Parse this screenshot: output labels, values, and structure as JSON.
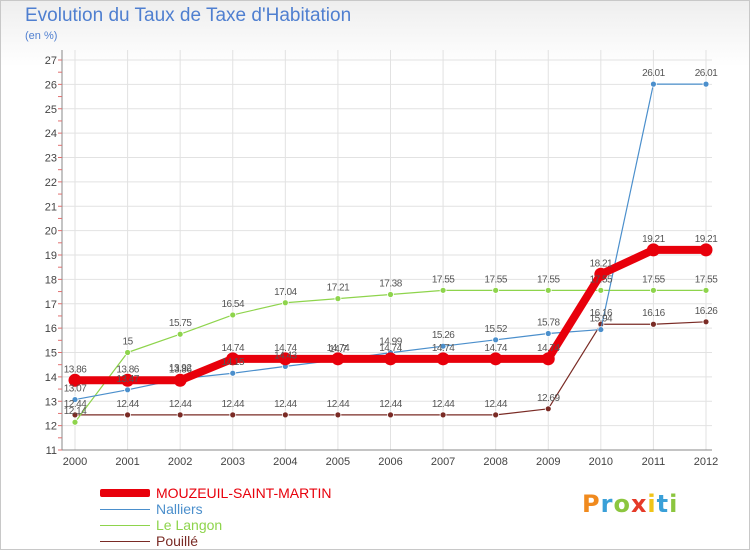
{
  "header": {
    "title": "Evolution du Taux de Taxe d'Habitation",
    "subtitle": "(en %)"
  },
  "brand": {
    "logo_text": "Proxiti",
    "letter_colors": [
      "#f08a1e",
      "#3aa0d8",
      "#8cc63f",
      "#e53a28",
      "#f0c419",
      "#3aa0d8",
      "#8cc63f"
    ]
  },
  "chart_data": {
    "type": "line",
    "x": [
      "2000",
      "2001",
      "2002",
      "2003",
      "2004",
      "2005",
      "2006",
      "2007",
      "2008",
      "2009",
      "2010",
      "2011",
      "2012"
    ],
    "ylim": [
      11,
      27
    ],
    "yticks": [
      "11",
      "12",
      "13",
      "14",
      "15",
      "16",
      "17",
      "18",
      "19",
      "20",
      "21",
      "22",
      "23",
      "24",
      "25",
      "26",
      "27"
    ],
    "grid": true,
    "legend_position": "bottom-left",
    "series": [
      {
        "name": "MOUZEUIL-SAINT-MARTIN",
        "color": "#e8000b",
        "values": [
          13.86,
          13.86,
          13.86,
          14.74,
          14.74,
          14.74,
          14.74,
          14.74,
          14.74,
          14.74,
          18.21,
          19.21,
          19.21
        ],
        "labels": [
          "13.86",
          "13.86",
          "13.86",
          "14.74",
          "14.74",
          "14.74",
          "14.74",
          "14.74",
          "14.74",
          "14.74",
          "18.21",
          "19.21",
          "19.21"
        ]
      },
      {
        "name": "Nalliers",
        "color": "#4b8fcc",
        "values": [
          13.07,
          13.47,
          13.92,
          14.15,
          14.43,
          14.7,
          14.99,
          15.26,
          15.52,
          15.78,
          15.94,
          26.01,
          26.01
        ],
        "labels": [
          "13.07",
          "13.47",
          "13.92",
          "14.15",
          "14.43",
          "14.7",
          "14.99",
          "15.26",
          "15.52",
          "15.78",
          "15.94",
          "26.01",
          "26.01"
        ]
      },
      {
        "name": "Le Langon",
        "color": "#8ed44c",
        "values": [
          12.14,
          15,
          15.75,
          16.54,
          17.04,
          17.21,
          17.38,
          17.55,
          17.55,
          17.55,
          17.55,
          17.55,
          17.55
        ],
        "labels": [
          "12.14",
          "15",
          "15.75",
          "16.54",
          "17.04",
          "17.21",
          "17.38",
          "17.55",
          "17.55",
          "17.55",
          "17.55",
          "17.55",
          "17.55"
        ]
      },
      {
        "name": "Pouillé",
        "color": "#7a2b25",
        "values": [
          12.44,
          12.44,
          12.44,
          12.44,
          12.44,
          12.44,
          12.44,
          12.44,
          12.44,
          12.69,
          16.16,
          16.16,
          16.26
        ],
        "labels": [
          "12.44",
          "12.44",
          "12.44",
          "12.44",
          "12.44",
          "12.44",
          "12.44",
          "12.44",
          "12.44",
          "12.69",
          "16.16",
          "16.16",
          "16.26"
        ]
      }
    ]
  }
}
